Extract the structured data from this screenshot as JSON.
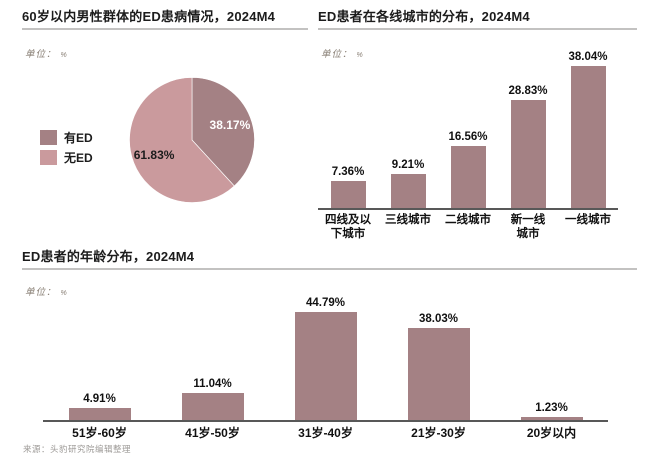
{
  "page": {
    "source_prefix": "来源：",
    "source_text": "头豹研究院编辑整理"
  },
  "unit": {
    "label": "单位：",
    "value": "%"
  },
  "colors": {
    "bar": "#a48184",
    "pie_dark": "#a48184",
    "pie_light": "#ca9a9d",
    "title": "#1c1c1c",
    "axis_line": "#585858",
    "title_rule": "#c3c2c1",
    "unit_text": "#8a8076",
    "source_text": "#9d9a97"
  },
  "chart_data": [
    {
      "id": "ed-prevalence-pie",
      "type": "pie",
      "title": "60岁以内男性群体的ED患病情况，2024M4",
      "unit": "%",
      "legend_position": "left",
      "start_angle_deg": 0,
      "direction": "clockwise",
      "slices": [
        {
          "label": "有ED",
          "value": 38.17,
          "display": "38.17%",
          "color": "#a48184",
          "text_color": "#ffffff"
        },
        {
          "label": "无ED",
          "value": 61.83,
          "display": "61.83%",
          "color": "#ca9a9d",
          "text_color": "#1c1c1c"
        }
      ]
    },
    {
      "id": "ed-city-tier-bar",
      "type": "bar",
      "title": "ED患者在各线城市的分布，2024M4",
      "unit": "%",
      "grid": false,
      "ylim": [
        0,
        42.4
      ],
      "categories": [
        "四线及以下城市",
        "三线城市",
        "二线城市",
        "新一线城市",
        "一线城市"
      ],
      "category_lines": [
        [
          "四线及以",
          "下城市"
        ],
        [
          "三线城市"
        ],
        [
          "二线城市"
        ],
        [
          "新一线",
          "城市"
        ],
        [
          "一线城市"
        ]
      ],
      "values": [
        7.36,
        9.21,
        16.56,
        28.83,
        38.04
      ],
      "value_labels": [
        "7.36%",
        "9.21%",
        "16.56%",
        "28.83%",
        "38.04%"
      ]
    },
    {
      "id": "ed-age-distribution-bar",
      "type": "bar",
      "title": "ED患者的年龄分布，2024M4",
      "unit": "%",
      "grid": false,
      "ylim": [
        0,
        53.1
      ],
      "categories": [
        "51岁-60岁",
        "41岁-50岁",
        "31岁-40岁",
        "21岁-30岁",
        "20岁以内"
      ],
      "category_lines": [
        [
          "51岁-60岁"
        ],
        [
          "41岁-50岁"
        ],
        [
          "31岁-40岁"
        ],
        [
          "21岁-30岁"
        ],
        [
          "20岁以内"
        ]
      ],
      "values": [
        4.91,
        11.04,
        44.79,
        38.03,
        1.23
      ],
      "value_labels": [
        "4.91%",
        "11.04%",
        "44.79%",
        "38.03%",
        "1.23%"
      ]
    }
  ]
}
